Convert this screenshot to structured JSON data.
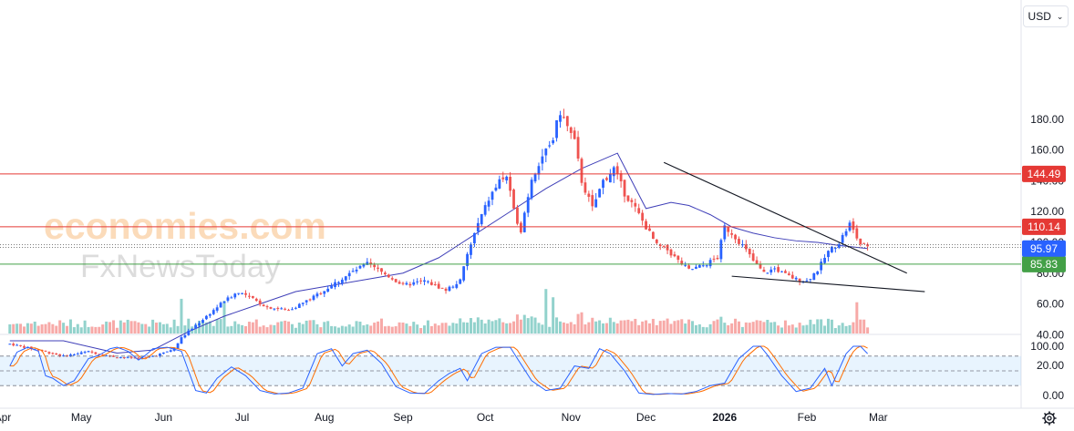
{
  "currency": {
    "label": "USD"
  },
  "watermark": {
    "brand": "economies.com",
    "sub": "FxNewsToday"
  },
  "chart_data": {
    "type": "candlestick",
    "price_axis": {
      "ylim": [
        0,
        200
      ],
      "ticks": [
        "20.00",
        "40.00",
        "60.00",
        "80.00",
        "100.00",
        "120.00",
        "140.00",
        "160.00",
        "180.00"
      ]
    },
    "time_axis": {
      "labels": [
        {
          "label": "Mar",
          "bar": -25
        },
        {
          "label": "Apr",
          "bar": -2
        },
        {
          "label": "May",
          "bar": 20
        },
        {
          "label": "Jun",
          "bar": 43
        },
        {
          "label": "Jul",
          "bar": 65
        },
        {
          "label": "Aug",
          "bar": 88
        },
        {
          "label": "Sep",
          "bar": 110
        },
        {
          "label": "Oct",
          "bar": 133
        },
        {
          "label": "Nov",
          "bar": 157
        },
        {
          "label": "Dec",
          "bar": 178
        },
        {
          "label": "2026",
          "bar": 200,
          "bold": true
        },
        {
          "label": "Feb",
          "bar": 223
        },
        {
          "label": "Mar",
          "bar": 243
        }
      ],
      "total_bars": 270
    },
    "series_anchors": [
      [
        0,
        34
      ],
      [
        8,
        30
      ],
      [
        15,
        26
      ],
      [
        22,
        29
      ],
      [
        28,
        26
      ],
      [
        33,
        25
      ],
      [
        38,
        25
      ],
      [
        43,
        28
      ],
      [
        46,
        31
      ],
      [
        48,
        38
      ],
      [
        52,
        46
      ],
      [
        56,
        54
      ],
      [
        60,
        62
      ],
      [
        64,
        68
      ],
      [
        68,
        63
      ],
      [
        72,
        58
      ],
      [
        78,
        56
      ],
      [
        84,
        63
      ],
      [
        90,
        72
      ],
      [
        96,
        81
      ],
      [
        100,
        86
      ],
      [
        106,
        78
      ],
      [
        110,
        72
      ],
      [
        116,
        75
      ],
      [
        122,
        69
      ],
      [
        126,
        75
      ],
      [
        128,
        92
      ],
      [
        131,
        112
      ],
      [
        134,
        128
      ],
      [
        137,
        140
      ],
      [
        139,
        143
      ],
      [
        141,
        120
      ],
      [
        143,
        108
      ],
      [
        146,
        142
      ],
      [
        149,
        156
      ],
      [
        152,
        168
      ],
      [
        154,
        185
      ],
      [
        156,
        175
      ],
      [
        158,
        165
      ],
      [
        160,
        140
      ],
      [
        163,
        122
      ],
      [
        166,
        140
      ],
      [
        169,
        148
      ],
      [
        172,
        132
      ],
      [
        175,
        122
      ],
      [
        178,
        110
      ],
      [
        181,
        98
      ],
      [
        184,
        95
      ],
      [
        187,
        88
      ],
      [
        190,
        82
      ],
      [
        194,
        85
      ],
      [
        198,
        90
      ],
      [
        200,
        110
      ],
      [
        202,
        106
      ],
      [
        205,
        98
      ],
      [
        208,
        88
      ],
      [
        211,
        80
      ],
      [
        214,
        83
      ],
      [
        217,
        79
      ],
      [
        220,
        76
      ],
      [
        223,
        75
      ],
      [
        226,
        82
      ],
      [
        229,
        94
      ],
      [
        232,
        100
      ],
      [
        235,
        112
      ],
      [
        237,
        103
      ],
      [
        239,
        98
      ],
      [
        240,
        96
      ]
    ],
    "last_bar": 240,
    "moving_average": [
      [
        0,
        36
      ],
      [
        15,
        36
      ],
      [
        30,
        28
      ],
      [
        40,
        30
      ],
      [
        50,
        42
      ],
      [
        60,
        52
      ],
      [
        70,
        60
      ],
      [
        80,
        68
      ],
      [
        90,
        72
      ],
      [
        100,
        76
      ],
      [
        110,
        80
      ],
      [
        120,
        90
      ],
      [
        130,
        105
      ],
      [
        140,
        120
      ],
      [
        150,
        135
      ],
      [
        160,
        148
      ],
      [
        170,
        158
      ],
      [
        178,
        122
      ],
      [
        185,
        126
      ],
      [
        190,
        124
      ],
      [
        196,
        118
      ],
      [
        202,
        110
      ],
      [
        208,
        106
      ],
      [
        214,
        103
      ],
      [
        220,
        101
      ],
      [
        226,
        100
      ],
      [
        232,
        98
      ],
      [
        240,
        96
      ]
    ],
    "horizontal_lines": [
      {
        "name": "resistance-144",
        "value": 144.49,
        "color": "#e53935",
        "label": "144.49"
      },
      {
        "name": "resistance-110",
        "value": 110.14,
        "color": "#e53935",
        "label": "110.14"
      },
      {
        "name": "support-85",
        "value": 85.83,
        "color": "#43a047",
        "label": "85.83"
      }
    ],
    "current_price": {
      "value": 95.97,
      "label": "95.97",
      "color": "#2962ff"
    },
    "dotted_levels": [
      98.5,
      96.8
    ],
    "wedge": {
      "upper": [
        [
          183,
          152
        ],
        [
          251,
          80
        ]
      ],
      "lower": [
        [
          202,
          78
        ],
        [
          256,
          68
        ]
      ]
    },
    "oscillator": {
      "ylim": [
        0,
        100
      ],
      "ticks": [
        "100.00",
        "0.00"
      ],
      "overbought": 80,
      "oversold": 20,
      "mid": 50,
      "k_anchors": [
        [
          0,
          60
        ],
        [
          2,
          88
        ],
        [
          5,
          98
        ],
        [
          8,
          90
        ],
        [
          10,
          40
        ],
        [
          12,
          35
        ],
        [
          15,
          20
        ],
        [
          18,
          30
        ],
        [
          22,
          75
        ],
        [
          25,
          82
        ],
        [
          28,
          95
        ],
        [
          30,
          98
        ],
        [
          33,
          90
        ],
        [
          36,
          72
        ],
        [
          38,
          82
        ],
        [
          40,
          95
        ],
        [
          44,
          98
        ],
        [
          48,
          90
        ],
        [
          52,
          10
        ],
        [
          55,
          5
        ],
        [
          58,
          35
        ],
        [
          62,
          58
        ],
        [
          66,
          40
        ],
        [
          70,
          10
        ],
        [
          74,
          3
        ],
        [
          78,
          5
        ],
        [
          82,
          15
        ],
        [
          86,
          85
        ],
        [
          90,
          95
        ],
        [
          93,
          60
        ],
        [
          96,
          85
        ],
        [
          100,
          92
        ],
        [
          104,
          65
        ],
        [
          108,
          18
        ],
        [
          112,
          5
        ],
        [
          116,
          4
        ],
        [
          120,
          30
        ],
        [
          123,
          45
        ],
        [
          126,
          55
        ],
        [
          128,
          30
        ],
        [
          132,
          85
        ],
        [
          136,
          98
        ],
        [
          140,
          98
        ],
        [
          142,
          75
        ],
        [
          146,
          30
        ],
        [
          150,
          10
        ],
        [
          154,
          15
        ],
        [
          158,
          60
        ],
        [
          162,
          55
        ],
        [
          165,
          95
        ],
        [
          168,
          85
        ],
        [
          172,
          50
        ],
        [
          176,
          5
        ],
        [
          180,
          2
        ],
        [
          184,
          4
        ],
        [
          188,
          3
        ],
        [
          192,
          8
        ],
        [
          196,
          20
        ],
        [
          200,
          25
        ],
        [
          204,
          75
        ],
        [
          208,
          100
        ],
        [
          210,
          100
        ],
        [
          212,
          82
        ],
        [
          216,
          40
        ],
        [
          220,
          8
        ],
        [
          224,
          15
        ],
        [
          228,
          55
        ],
        [
          230,
          20
        ],
        [
          234,
          85
        ],
        [
          236,
          100
        ],
        [
          238,
          100
        ],
        [
          240,
          85
        ]
      ]
    },
    "volume_ylim": [
      0,
      150
    ]
  }
}
